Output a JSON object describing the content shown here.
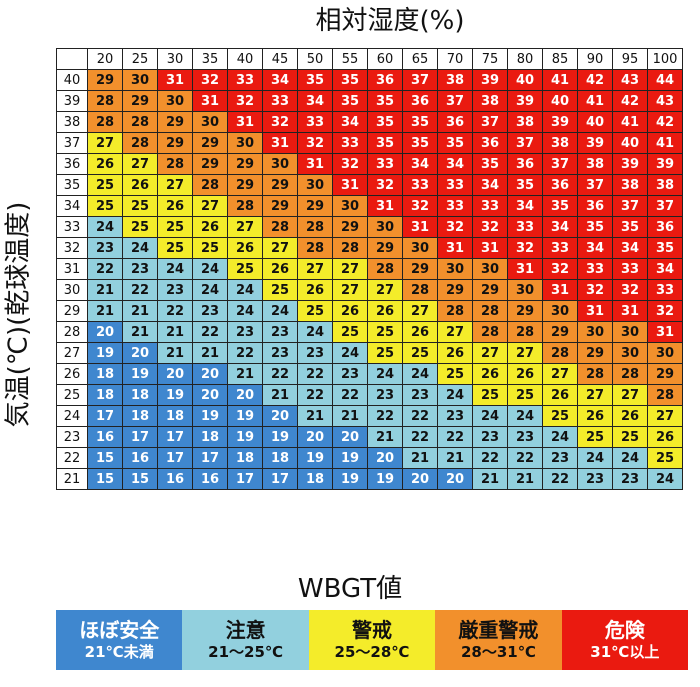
{
  "colors": {
    "blue": "#3f87cf",
    "lightblue": "#92d0de",
    "yellow": "#f4ec2a",
    "orange": "#f2902c",
    "red": "#ea1a10"
  },
  "chart_data": {
    "type": "heatmap",
    "title": "相対湿度(%)",
    "ylabel": "気温(℃)(乾球温度)",
    "x": [
      20,
      25,
      30,
      35,
      40,
      45,
      50,
      55,
      60,
      65,
      70,
      75,
      80,
      85,
      90,
      95,
      100
    ],
    "y": [
      40,
      39,
      38,
      37,
      36,
      35,
      34,
      33,
      32,
      31,
      30,
      29,
      28,
      27,
      26,
      25,
      24,
      23,
      22,
      21
    ],
    "values": [
      [
        29,
        30,
        31,
        32,
        33,
        34,
        35,
        35,
        36,
        37,
        38,
        39,
        40,
        41,
        42,
        43,
        44
      ],
      [
        28,
        29,
        30,
        31,
        32,
        33,
        34,
        35,
        35,
        36,
        37,
        38,
        39,
        40,
        41,
        42,
        43
      ],
      [
        28,
        28,
        29,
        30,
        31,
        32,
        33,
        34,
        35,
        35,
        36,
        37,
        38,
        39,
        40,
        41,
        42
      ],
      [
        27,
        28,
        29,
        29,
        30,
        31,
        32,
        33,
        35,
        35,
        35,
        36,
        37,
        38,
        39,
        40,
        41
      ],
      [
        26,
        27,
        28,
        29,
        29,
        30,
        31,
        32,
        33,
        34,
        34,
        35,
        36,
        37,
        38,
        39,
        39
      ],
      [
        25,
        26,
        27,
        28,
        29,
        29,
        30,
        31,
        32,
        33,
        33,
        34,
        35,
        36,
        37,
        38,
        38
      ],
      [
        25,
        25,
        26,
        27,
        28,
        29,
        29,
        30,
        31,
        32,
        33,
        33,
        34,
        35,
        36,
        37,
        37
      ],
      [
        24,
        25,
        25,
        26,
        27,
        28,
        28,
        29,
        30,
        31,
        32,
        32,
        33,
        34,
        35,
        35,
        36
      ],
      [
        23,
        24,
        25,
        25,
        26,
        27,
        28,
        28,
        29,
        30,
        31,
        31,
        32,
        33,
        34,
        34,
        35
      ],
      [
        22,
        23,
        24,
        24,
        25,
        26,
        27,
        27,
        28,
        29,
        30,
        30,
        31,
        32,
        33,
        33,
        34
      ],
      [
        21,
        22,
        23,
        24,
        24,
        25,
        26,
        27,
        27,
        28,
        29,
        29,
        30,
        31,
        32,
        32,
        33
      ],
      [
        21,
        21,
        22,
        23,
        24,
        24,
        25,
        26,
        26,
        27,
        28,
        28,
        29,
        30,
        31,
        31,
        32
      ],
      [
        20,
        21,
        21,
        22,
        23,
        23,
        24,
        25,
        25,
        26,
        27,
        28,
        28,
        29,
        30,
        30,
        31
      ],
      [
        19,
        20,
        21,
        21,
        22,
        23,
        23,
        24,
        25,
        25,
        26,
        27,
        27,
        28,
        29,
        30,
        30
      ],
      [
        18,
        19,
        20,
        20,
        21,
        22,
        22,
        23,
        24,
        24,
        25,
        26,
        26,
        27,
        28,
        28,
        29
      ],
      [
        18,
        18,
        19,
        20,
        20,
        21,
        22,
        22,
        23,
        23,
        24,
        25,
        25,
        26,
        27,
        27,
        28
      ],
      [
        17,
        18,
        18,
        19,
        19,
        20,
        21,
        21,
        22,
        22,
        23,
        24,
        24,
        25,
        26,
        26,
        27
      ],
      [
        16,
        17,
        17,
        18,
        19,
        19,
        20,
        20,
        21,
        22,
        22,
        23,
        23,
        24,
        25,
        25,
        26
      ],
      [
        15,
        16,
        17,
        17,
        18,
        18,
        19,
        19,
        20,
        21,
        21,
        22,
        22,
        23,
        24,
        24,
        25
      ],
      [
        15,
        15,
        16,
        16,
        17,
        17,
        18,
        19,
        19,
        20,
        20,
        21,
        21,
        22,
        23,
        23,
        24
      ]
    ]
  },
  "legend": {
    "title": "WBGT値",
    "items": [
      {
        "name": "ほぼ安全",
        "range": "21℃未満",
        "color": "#3f87cf",
        "text_color": "#ffffff"
      },
      {
        "name": "注意",
        "range": "21〜25℃",
        "color": "#92d0de",
        "text_color": "#111111"
      },
      {
        "name": "警戒",
        "range": "25〜28℃",
        "color": "#f4ec2a",
        "text_color": "#111111"
      },
      {
        "name": "厳重警戒",
        "range": "28〜31℃",
        "color": "#f2902c",
        "text_color": "#111111"
      },
      {
        "name": "危険",
        "range": "31℃以上",
        "color": "#ea1a10",
        "text_color": "#ffffff"
      }
    ]
  }
}
